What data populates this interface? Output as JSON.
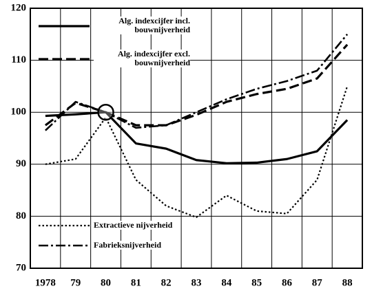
{
  "chart_data": {
    "type": "line",
    "categories": [
      "1978",
      "79",
      "80",
      "81",
      "82",
      "83",
      "84",
      "85",
      "86",
      "87",
      "88"
    ],
    "series": [
      {
        "name": "Alg. indexcijfer incl. bouwnijverheid",
        "color": "#000000",
        "style": "solid",
        "values": [
          99.3,
          99.6,
          100,
          94,
          93,
          90.8,
          90.2,
          90.3,
          91,
          92.5,
          98.5
        ]
      },
      {
        "name": "Alg. indexcijfer excl. bouwnijverheid",
        "color": "#000000",
        "style": "dashed",
        "values": [
          97.5,
          101.8,
          100,
          97.5,
          97.5,
          99.5,
          102,
          103.5,
          104.5,
          106.5,
          113
        ]
      },
      {
        "name": "Extractieve nijverheid",
        "color": "#000000",
        "style": "dotted",
        "values": [
          90,
          91,
          99,
          87,
          82,
          79.8,
          84,
          81,
          80.5,
          87,
          105
        ]
      },
      {
        "name": "Fabrieksnijverheid",
        "color": "#000000",
        "style": "dashdot",
        "values": [
          96.5,
          102,
          100,
          97,
          97.5,
          100,
          102.5,
          104.5,
          106,
          108,
          115
        ]
      }
    ],
    "ylim": [
      70,
      120
    ],
    "yticks": [
      70,
      80,
      90,
      100,
      110,
      120
    ],
    "grid": true
  }
}
